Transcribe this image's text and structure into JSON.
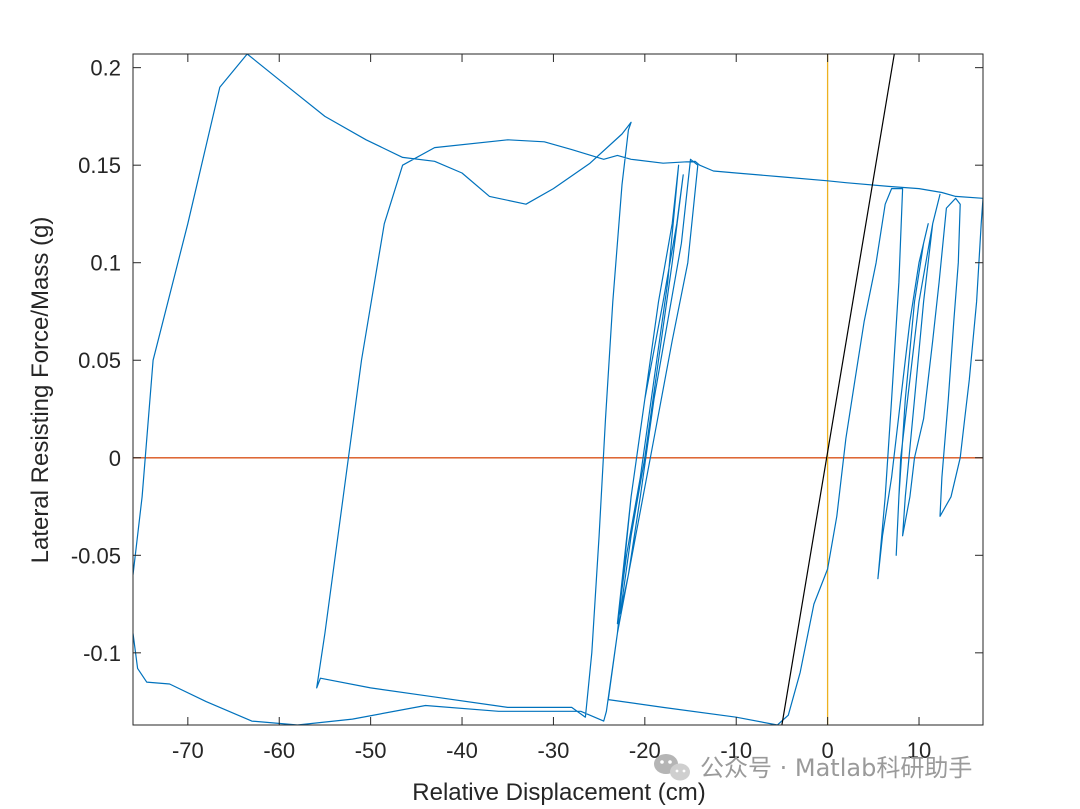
{
  "chart_data": {
    "type": "line",
    "xlabel": "Relative Displacement (cm)",
    "ylabel": "Lateral Resisting Force/Mass (g)",
    "xlim": [
      -76,
      17
    ],
    "ylim": [
      -0.137,
      0.207
    ],
    "xticks": [
      -70,
      -60,
      -50,
      -40,
      -30,
      -20,
      -10,
      0,
      10
    ],
    "yticks": [
      -0.1,
      -0.05,
      0,
      0.05,
      0.1,
      0.15,
      0.2
    ],
    "xtick_labels": [
      "-70",
      "-60",
      "-50",
      "-40",
      "-30",
      "-20",
      "-10",
      "0",
      "10"
    ],
    "ytick_labels": [
      "-0.1",
      "-0.05",
      "0",
      "0.05",
      "0.1",
      "0.15",
      "0.2"
    ],
    "grid": false,
    "colors": {
      "hysteresis": "#0072BD",
      "zero_force": "#D95319",
      "zero_disp": "#EDB120",
      "stiffness": "#000000"
    },
    "series": [
      {
        "role": "hysteresis",
        "points": [
          [
            -76,
            -0.06
          ],
          [
            -75,
            -0.02
          ],
          [
            -73.8,
            0.05
          ],
          [
            -70,
            0.12
          ],
          [
            -66.5,
            0.19
          ],
          [
            -63.5,
            0.207
          ],
          [
            -59,
            0.19
          ],
          [
            -55,
            0.175
          ],
          [
            -50.5,
            0.163
          ],
          [
            -46.5,
            0.154
          ],
          [
            -43,
            0.152
          ],
          [
            -40,
            0.146
          ],
          [
            -37,
            0.134
          ],
          [
            -33,
            0.13
          ],
          [
            -30,
            0.138
          ],
          [
            -26,
            0.151
          ],
          [
            -22.5,
            0.166
          ],
          [
            -21.5,
            0.172
          ],
          [
            -21.8,
            0.168
          ],
          [
            -22.5,
            0.14
          ],
          [
            -23.5,
            0.08
          ],
          [
            -24.3,
            0.02
          ],
          [
            -25,
            -0.04
          ],
          [
            -25.8,
            -0.1
          ],
          [
            -26.5,
            -0.133
          ],
          [
            -28,
            -0.128
          ],
          [
            -35,
            -0.128
          ],
          [
            -44,
            -0.122
          ],
          [
            -50,
            -0.118
          ],
          [
            -55.5,
            -0.113
          ],
          [
            -55.9,
            -0.118
          ],
          [
            -55,
            -0.09
          ],
          [
            -53,
            -0.02
          ],
          [
            -51,
            0.05
          ],
          [
            -48.5,
            0.12
          ],
          [
            -46.5,
            0.15
          ],
          [
            -43,
            0.159
          ],
          [
            -35,
            0.163
          ],
          [
            -31,
            0.162
          ],
          [
            -28,
            0.158
          ],
          [
            -24.5,
            0.153
          ],
          [
            -23,
            0.155
          ],
          [
            -21.5,
            0.153
          ],
          [
            -18,
            0.151
          ],
          [
            -14.5,
            0.152
          ],
          [
            -14,
            0.15
          ],
          [
            -12.5,
            0.147
          ],
          [
            -10,
            0.146
          ],
          [
            -5,
            0.144
          ],
          [
            0,
            0.142
          ],
          [
            2,
            0.141
          ],
          [
            7,
            0.139
          ],
          [
            10,
            0.138
          ],
          [
            12.5,
            0.136
          ],
          [
            14,
            0.134
          ],
          [
            17,
            0.133
          ],
          [
            16.8,
            0.12
          ],
          [
            16.3,
            0.08
          ],
          [
            15.5,
            0.04
          ],
          [
            15,
            0.02
          ],
          [
            14.5,
            0
          ],
          [
            13.5,
            -0.02
          ],
          [
            12.3,
            -0.03
          ],
          [
            12.5,
            -0.01
          ],
          [
            13.2,
            0.03
          ],
          [
            13.8,
            0.07
          ],
          [
            14.3,
            0.1
          ],
          [
            14.5,
            0.13
          ],
          [
            14,
            0.133
          ],
          [
            13,
            0.128
          ],
          [
            12.2,
            0.09
          ],
          [
            11.5,
            0.06
          ],
          [
            10.5,
            0.02
          ],
          [
            9.5,
            0
          ],
          [
            9,
            -0.02
          ],
          [
            8.2,
            -0.04
          ],
          [
            8.5,
            -0.02
          ],
          [
            9.5,
            0.03
          ],
          [
            10.5,
            0.08
          ],
          [
            11.5,
            0.12
          ],
          [
            12.3,
            0.135
          ],
          [
            11.5,
            0.12
          ],
          [
            10,
            0.08
          ],
          [
            9,
            0.04
          ],
          [
            8,
            0
          ],
          [
            7.5,
            -0.05
          ],
          [
            7.8,
            -0.02
          ],
          [
            8.5,
            0.03
          ],
          [
            9.5,
            0.08
          ],
          [
            10.5,
            0.11
          ],
          [
            11,
            0.12
          ],
          [
            10,
            0.1
          ],
          [
            9,
            0.07
          ],
          [
            8,
            0.03
          ],
          [
            7,
            -0.01
          ],
          [
            6,
            -0.04
          ],
          [
            5.5,
            -0.062
          ],
          [
            6.3,
            -0.02
          ],
          [
            7,
            0.03
          ],
          [
            7.8,
            0.09
          ],
          [
            8.2,
            0.138
          ],
          [
            7,
            0.138
          ],
          [
            6.3,
            0.13
          ],
          [
            5.3,
            0.1
          ],
          [
            4,
            0.07
          ],
          [
            3,
            0.04
          ],
          [
            2,
            0.01
          ],
          [
            1,
            -0.03
          ],
          [
            0,
            -0.057
          ],
          [
            -1.5,
            -0.075
          ],
          [
            -3,
            -0.11
          ],
          [
            -4.3,
            -0.132
          ],
          [
            -5.5,
            -0.137
          ],
          [
            -10,
            -0.133
          ],
          [
            -18,
            -0.128
          ],
          [
            -24,
            -0.124
          ],
          [
            -23,
            -0.09
          ],
          [
            -21,
            -0.04
          ],
          [
            -19,
            0.01
          ],
          [
            -17,
            0.06
          ],
          [
            -15.3,
            0.1
          ],
          [
            -14.2,
            0.15
          ],
          [
            -15,
            0.153
          ],
          [
            -16,
            0.11
          ],
          [
            -17.5,
            0.07
          ],
          [
            -19,
            0.03
          ],
          [
            -20.5,
            -0.02
          ],
          [
            -21.8,
            -0.06
          ],
          [
            -22.7,
            -0.08
          ],
          [
            -21.5,
            -0.04
          ],
          [
            -20,
            0
          ],
          [
            -18.5,
            0.05
          ],
          [
            -17,
            0.1
          ],
          [
            -15.8,
            0.145
          ],
          [
            -16.5,
            0.12
          ],
          [
            -18,
            0.08
          ],
          [
            -20,
            0.03
          ],
          [
            -21.5,
            -0.02
          ],
          [
            -23,
            -0.085
          ],
          [
            -22,
            -0.05
          ],
          [
            -20.5,
            -0.01
          ],
          [
            -19,
            0.04
          ],
          [
            -17.5,
            0.09
          ],
          [
            -16.3,
            0.15
          ],
          [
            -17,
            0.12
          ],
          [
            -18.5,
            0.08
          ],
          [
            -20,
            0.03
          ],
          [
            -21.5,
            -0.02
          ],
          [
            -23,
            -0.09
          ],
          [
            -24.2,
            -0.13
          ],
          [
            -24.5,
            -0.135
          ],
          [
            -27,
            -0.13
          ],
          [
            -36,
            -0.13
          ],
          [
            -44,
            -0.127
          ],
          [
            -52,
            -0.134
          ],
          [
            -58,
            -0.137
          ],
          [
            -63,
            -0.135
          ],
          [
            -68,
            -0.125
          ],
          [
            -72,
            -0.116
          ],
          [
            -74.5,
            -0.115
          ],
          [
            -75.5,
            -0.108
          ],
          [
            -76,
            -0.09
          ]
        ]
      },
      {
        "role": "stiffness",
        "points": [
          [
            -5,
            -0.137
          ],
          [
            7.3,
            0.207
          ]
        ]
      },
      {
        "role": "zero_force",
        "points": [
          [
            -76,
            0
          ],
          [
            17,
            0
          ]
        ]
      },
      {
        "role": "zero_disp",
        "points": [
          [
            0,
            -0.137
          ],
          [
            0,
            0.207
          ]
        ]
      }
    ]
  },
  "watermark": {
    "text": "公众号 · Matlab科研助手",
    "icon": "wechat-icon"
  }
}
